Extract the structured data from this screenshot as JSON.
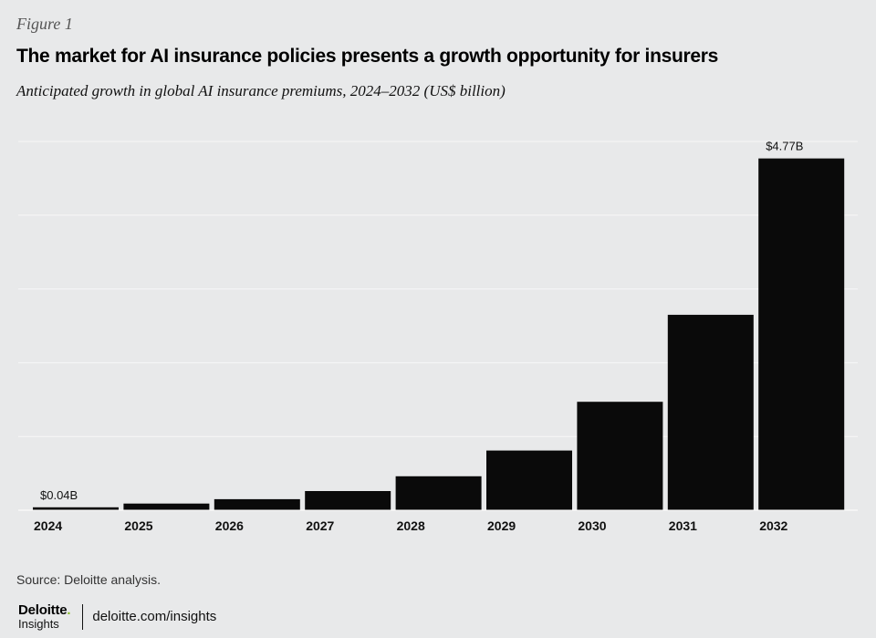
{
  "figure_label": "Figure 1",
  "title": "The market for AI insurance policies presents a growth opportunity for insurers",
  "subtitle": "Anticipated growth in global AI insurance premiums, 2024–2032 (US$ billion)",
  "source": "Source: Deloitte analysis.",
  "footer": {
    "brand": "Deloitte",
    "brand_dot": ".",
    "sub": "Insights",
    "url": "deloitte.com/insights"
  },
  "colors": {
    "background": "#e8e9ea",
    "bar": "#0a0a0a",
    "gridline": "#f7f7f7",
    "logo_dot": "#86bc25"
  },
  "chart_data": {
    "type": "bar",
    "categories": [
      "2024",
      "2025",
      "2026",
      "2027",
      "2028",
      "2029",
      "2030",
      "2031",
      "2032"
    ],
    "values": [
      0.04,
      0.09,
      0.15,
      0.26,
      0.46,
      0.81,
      1.47,
      2.65,
      4.77
    ],
    "data_labels": [
      {
        "index": 0,
        "text": "$0.04B"
      },
      {
        "index": 8,
        "text": "$4.77B"
      }
    ],
    "title": "",
    "xlabel": "",
    "ylabel": "",
    "ylim": [
      0,
      5
    ],
    "grid": true,
    "legend": "none"
  }
}
